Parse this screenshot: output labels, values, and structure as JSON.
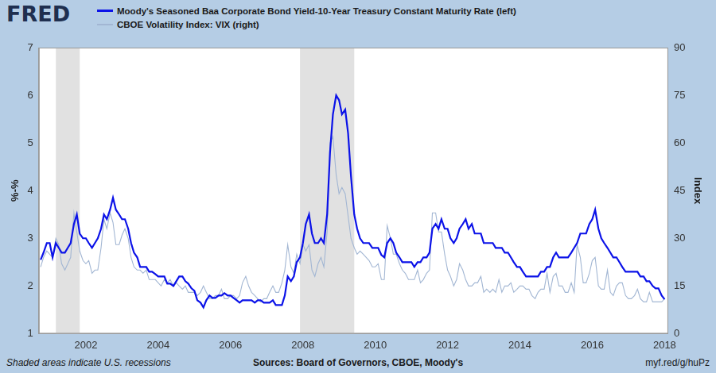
{
  "logo": "FRED",
  "footnotes": [
    "Shaded areas indicate U.S. recessions",
    "Sources: Board of Governors, CBOE, Moody's",
    "myf.red/g/huPz"
  ],
  "chart_data": {
    "type": "line",
    "legend": "top-left",
    "grid": false,
    "ylabel": "%-%",
    "y2label": "Index",
    "xlim": [
      2000.7,
      2018.1
    ],
    "xticks": [
      2002,
      2004,
      2006,
      2008,
      2010,
      2012,
      2014,
      2016,
      2018
    ],
    "ylim": [
      1,
      7
    ],
    "yticks": [
      1,
      2,
      3,
      4,
      5,
      6,
      7
    ],
    "y2lim": [
      0,
      90
    ],
    "y2ticks": [
      0,
      15,
      30,
      45,
      60,
      75,
      90
    ],
    "recessions": [
      {
        "start": 2001.17,
        "end": 2001.83
      },
      {
        "start": 2007.92,
        "end": 2009.42
      }
    ],
    "x": [
      2000.75,
      2000.83,
      2000.92,
      2001.0,
      2001.08,
      2001.17,
      2001.25,
      2001.33,
      2001.42,
      2001.5,
      2001.58,
      2001.67,
      2001.75,
      2001.83,
      2001.92,
      2002.0,
      2002.08,
      2002.17,
      2002.25,
      2002.33,
      2002.42,
      2002.5,
      2002.58,
      2002.67,
      2002.75,
      2002.83,
      2002.92,
      2003.0,
      2003.08,
      2003.17,
      2003.25,
      2003.33,
      2003.42,
      2003.5,
      2003.58,
      2003.67,
      2003.75,
      2003.83,
      2003.92,
      2004.0,
      2004.08,
      2004.17,
      2004.25,
      2004.33,
      2004.42,
      2004.5,
      2004.58,
      2004.67,
      2004.75,
      2004.83,
      2004.92,
      2005.0,
      2005.08,
      2005.17,
      2005.25,
      2005.33,
      2005.42,
      2005.5,
      2005.58,
      2005.67,
      2005.75,
      2005.83,
      2005.92,
      2006.0,
      2006.08,
      2006.17,
      2006.25,
      2006.33,
      2006.42,
      2006.5,
      2006.58,
      2006.67,
      2006.75,
      2006.83,
      2006.92,
      2007.0,
      2007.08,
      2007.17,
      2007.25,
      2007.33,
      2007.42,
      2007.5,
      2007.58,
      2007.67,
      2007.75,
      2007.83,
      2007.92,
      2008.0,
      2008.08,
      2008.17,
      2008.25,
      2008.33,
      2008.42,
      2008.5,
      2008.58,
      2008.67,
      2008.75,
      2008.83,
      2008.92,
      2009.0,
      2009.08,
      2009.17,
      2009.25,
      2009.33,
      2009.42,
      2009.5,
      2009.58,
      2009.67,
      2009.75,
      2009.83,
      2009.92,
      2010.0,
      2010.08,
      2010.17,
      2010.25,
      2010.33,
      2010.42,
      2010.5,
      2010.58,
      2010.67,
      2010.75,
      2010.83,
      2010.92,
      2011.0,
      2011.08,
      2011.17,
      2011.25,
      2011.33,
      2011.42,
      2011.5,
      2011.58,
      2011.67,
      2011.75,
      2011.83,
      2011.92,
      2012.0,
      2012.08,
      2012.17,
      2012.25,
      2012.33,
      2012.42,
      2012.5,
      2012.58,
      2012.67,
      2012.75,
      2012.83,
      2012.92,
      2013.0,
      2013.08,
      2013.17,
      2013.25,
      2013.33,
      2013.42,
      2013.5,
      2013.58,
      2013.67,
      2013.75,
      2013.83,
      2013.92,
      2014.0,
      2014.08,
      2014.17,
      2014.25,
      2014.33,
      2014.42,
      2014.5,
      2014.58,
      2014.67,
      2014.75,
      2014.83,
      2014.92,
      2015.0,
      2015.08,
      2015.17,
      2015.25,
      2015.33,
      2015.42,
      2015.5,
      2015.58,
      2015.67,
      2015.75,
      2015.83,
      2015.92,
      2016.0,
      2016.08,
      2016.17,
      2016.25,
      2016.33,
      2016.42,
      2016.5,
      2016.58,
      2016.67,
      2016.75,
      2016.83,
      2016.92,
      2017.0,
      2017.08,
      2017.17,
      2017.25,
      2017.33,
      2017.42,
      2017.5,
      2017.58,
      2017.67,
      2017.75,
      2017.83,
      2017.92,
      2018.0
    ],
    "series": [
      {
        "name": "Moody's Seasoned Baa Corporate Bond Yield-10-Year Treasury Constant Maturity Rate (left)",
        "color": "#0b12e8",
        "axis": "y",
        "values": [
          2.55,
          2.7,
          2.9,
          2.9,
          2.6,
          2.9,
          2.8,
          2.7,
          2.7,
          2.8,
          2.9,
          3.3,
          3.5,
          3.1,
          3.0,
          3.0,
          2.9,
          2.8,
          2.9,
          3.0,
          3.2,
          3.5,
          3.4,
          3.6,
          3.85,
          3.6,
          3.5,
          3.4,
          3.4,
          3.2,
          2.9,
          2.7,
          2.6,
          2.4,
          2.4,
          2.4,
          2.3,
          2.3,
          2.25,
          2.2,
          2.2,
          2.2,
          2.05,
          2.05,
          2.0,
          2.1,
          2.2,
          2.2,
          2.1,
          2.05,
          1.95,
          1.9,
          1.7,
          1.65,
          1.55,
          1.7,
          1.8,
          1.75,
          1.75,
          1.8,
          1.8,
          1.85,
          1.8,
          1.8,
          1.75,
          1.7,
          1.65,
          1.7,
          1.7,
          1.7,
          1.7,
          1.65,
          1.7,
          1.7,
          1.65,
          1.65,
          1.65,
          1.7,
          1.6,
          1.6,
          1.6,
          1.8,
          2.2,
          2.1,
          2.2,
          2.5,
          2.6,
          2.9,
          3.3,
          3.5,
          3.1,
          2.9,
          2.9,
          3.0,
          2.9,
          3.5,
          4.8,
          5.6,
          6.0,
          5.9,
          5.6,
          5.7,
          5.2,
          4.3,
          3.5,
          3.2,
          3.0,
          2.9,
          2.9,
          2.9,
          2.8,
          2.8,
          2.8,
          2.65,
          2.6,
          2.9,
          3.0,
          2.9,
          2.7,
          2.6,
          2.5,
          2.5,
          2.5,
          2.5,
          2.4,
          2.5,
          2.5,
          2.6,
          2.6,
          2.7,
          3.2,
          3.3,
          3.2,
          3.4,
          3.2,
          3.2,
          3.0,
          2.9,
          3.0,
          3.2,
          3.3,
          3.4,
          3.2,
          3.3,
          3.1,
          3.1,
          3.1,
          2.9,
          2.9,
          2.9,
          2.9,
          2.8,
          2.8,
          2.8,
          2.7,
          2.7,
          2.6,
          2.5,
          2.4,
          2.4,
          2.3,
          2.2,
          2.2,
          2.2,
          2.2,
          2.2,
          2.3,
          2.3,
          2.4,
          2.4,
          2.6,
          2.7,
          2.6,
          2.6,
          2.6,
          2.6,
          2.7,
          2.8,
          2.9,
          3.1,
          3.1,
          3.1,
          3.3,
          3.4,
          3.6,
          3.2,
          3.0,
          2.9,
          2.8,
          2.7,
          2.6,
          2.6,
          2.5,
          2.4,
          2.3,
          2.3,
          2.3,
          2.3,
          2.3,
          2.2,
          2.2,
          2.1,
          2.1,
          2.0,
          1.95,
          1.95,
          1.8,
          1.72
        ]
      },
      {
        "name": "CBOE Volatility Index: VIX (right)",
        "color": "#a2b6d3",
        "axis": "y2",
        "values": [
          21,
          24,
          26,
          25,
          24,
          30,
          28,
          22,
          20,
          22,
          24,
          38,
          32,
          26,
          23,
          22,
          23,
          19,
          20,
          20,
          27,
          36,
          33,
          38,
          35,
          28,
          28,
          31,
          33,
          30,
          24,
          21,
          20,
          20,
          19,
          20,
          17,
          17,
          17,
          16,
          15,
          17,
          16,
          17,
          15,
          16,
          15,
          14,
          15,
          13,
          13,
          13,
          12,
          13,
          15,
          13,
          11,
          11,
          12,
          12,
          14,
          11,
          11,
          12,
          12,
          11,
          12,
          16,
          18,
          15,
          13,
          12,
          11,
          10,
          11,
          11,
          13,
          15,
          13,
          13,
          16,
          20,
          28,
          21,
          19,
          25,
          22,
          28,
          26,
          28,
          20,
          18,
          22,
          24,
          21,
          32,
          60,
          62,
          50,
          44,
          46,
          44,
          37,
          30,
          27,
          25,
          26,
          25,
          24,
          23,
          21,
          21,
          22,
          17,
          17,
          34,
          30,
          25,
          25,
          22,
          20,
          19,
          17,
          17,
          17,
          20,
          16,
          17,
          19,
          20,
          38,
          38,
          32,
          32,
          25,
          20,
          18,
          15,
          17,
          22,
          20,
          17,
          15,
          15,
          16,
          16,
          18,
          13,
          14,
          13,
          14,
          13,
          17,
          13,
          15,
          15,
          16,
          13,
          14,
          15,
          15,
          14,
          14,
          12,
          11,
          13,
          14,
          14,
          19,
          13,
          18,
          19,
          15,
          15,
          13,
          13,
          16,
          13,
          28,
          24,
          16,
          16,
          19,
          23,
          24,
          15,
          14,
          14,
          20,
          13,
          12,
          15,
          16,
          16,
          12,
          11,
          11,
          12,
          14,
          11,
          10,
          10,
          13,
          10,
          10,
          10,
          10,
          11
        ]
      }
    ]
  }
}
